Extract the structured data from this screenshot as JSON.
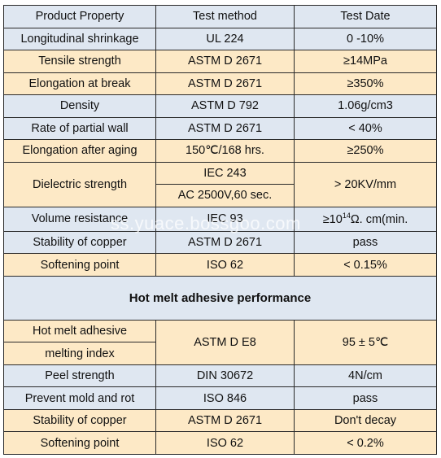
{
  "header": {
    "property": "Product Property",
    "method": "Test method",
    "result": "Test Date"
  },
  "rows": [
    {
      "property": "Longitudinal shrinkage",
      "method": "UL 224",
      "result": "0 -10%"
    },
    {
      "property": "Tensile strength",
      "method": "ASTM D 2671",
      "result": "≥14MPa"
    },
    {
      "property": "Elongation at break",
      "method": "ASTM D 2671",
      "result": "≥350%"
    },
    {
      "property": "Density",
      "method": "ASTM D 792",
      "result": "1.06g/cm3"
    },
    {
      "property": "Rate of partial wall",
      "method": "ASTM D 2671",
      "result": "< 40%"
    },
    {
      "property": "Elongation after aging",
      "method": "150℃/168 hrs.",
      "result": "≥250%"
    }
  ],
  "dielectric": {
    "property": "Dielectric strength",
    "method_1": "IEC 243",
    "method_2": "AC 2500V,60 sec.",
    "result": "> 20KV/mm"
  },
  "rows2": [
    {
      "property": "Volume resistance",
      "method": "IEC 93",
      "result_pre": "≥10",
      "result_sup": "14",
      "result_post": "Ω. cm(min."
    },
    {
      "property": "Stability of copper",
      "method": "ASTM D 2671",
      "result": "pass"
    },
    {
      "property": "Softening point",
      "method": "ISO 62",
      "result": "< 0.15%"
    }
  ],
  "section_title": "Hot melt adhesive performance",
  "melt": {
    "property_1": "Hot melt adhesive",
    "property_2": "melting index",
    "method": "ASTM D E8",
    "result": "95 ± 5℃"
  },
  "rows3": [
    {
      "property": "Peel strength",
      "method": "DIN 30672",
      "result": "4N/cm"
    },
    {
      "property": "Prevent mold and rot",
      "method": "ISO 846",
      "result": "pass"
    },
    {
      "property": "Stability of copper",
      "method": "ASTM D 2671",
      "result": "Don't decay"
    },
    {
      "property": "Softening point",
      "method": "ISO 62",
      "result": "< 0.2%"
    }
  ],
  "watermark": "ss.yuace.bossgoo.com"
}
